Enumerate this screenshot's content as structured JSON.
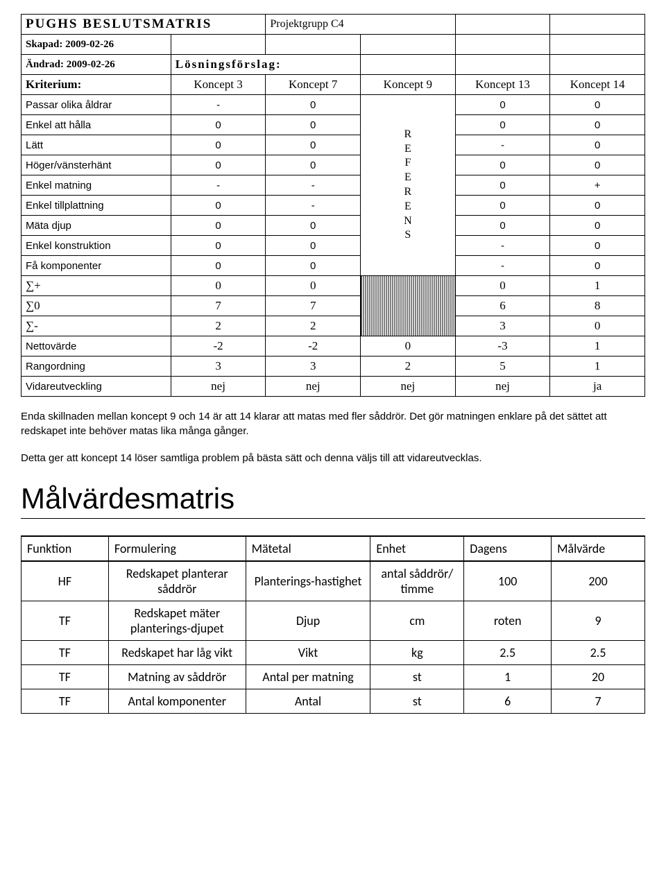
{
  "pugh": {
    "title": "PUGHS BESLUTSMATRIS",
    "project": "Projektgrupp C4",
    "created_label": "Skapad: 2009-02-26",
    "changed_label": "Ändrad: 2009-02-26",
    "losning_label": "Lösningsförslag:",
    "kriterium_label": "Kriterium:",
    "concepts": [
      "Koncept 3",
      "Koncept 7",
      "Koncept 9",
      "Koncept 13",
      "Koncept 14"
    ],
    "referens_text": "R\nE\nF\nE\nR\nE\nN\nS",
    "criteria": [
      {
        "label": "Passar olika åldrar",
        "c1": "-",
        "c2": "0",
        "c4": "0",
        "c5": "0"
      },
      {
        "label": "Enkel att hålla",
        "c1": "0",
        "c2": "0",
        "c4": "0",
        "c5": "0"
      },
      {
        "label": "Lätt",
        "c1": "0",
        "c2": "0",
        "c4": "-",
        "c5": "0"
      },
      {
        "label": "Höger/vänsterhänt",
        "c1": "0",
        "c2": "0",
        "c4": "0",
        "c5": "0"
      },
      {
        "label": "Enkel matning",
        "c1": "-",
        "c2": "-",
        "c4": "0",
        "c5": "+"
      },
      {
        "label": "Enkel tillplattning",
        "c1": "0",
        "c2": "-",
        "c4": "0",
        "c5": "0"
      },
      {
        "label": "Mäta djup",
        "c1": "0",
        "c2": "0",
        "c4": "0",
        "c5": "0"
      },
      {
        "label": "Enkel konstruktion",
        "c1": "0",
        "c2": "0",
        "c4": "-",
        "c5": "0"
      },
      {
        "label": "Få komponenter",
        "c1": "0",
        "c2": "0",
        "c4": "-",
        "c5": "0"
      }
    ],
    "sums": [
      {
        "label": "∑+",
        "c1": "0",
        "c2": "0",
        "c4": "0",
        "c5": "1"
      },
      {
        "label": "∑0",
        "c1": "7",
        "c2": "7",
        "c4": "6",
        "c5": "8"
      },
      {
        "label": "∑-",
        "c1": "2",
        "c2": "2",
        "c4": "3",
        "c5": "0"
      }
    ],
    "footer": [
      {
        "label": "Nettovärde",
        "c1": "-2",
        "c2": "-2",
        "c3": "0",
        "c4": "-3",
        "c5": "1"
      },
      {
        "label": "Rangordning",
        "c1": "3",
        "c2": "3",
        "c3": "2",
        "c4": "5",
        "c5": "1"
      },
      {
        "label": "Vidareutveckling",
        "c1": "nej",
        "c2": "nej",
        "c3": "nej",
        "c4": "nej",
        "c5": "ja"
      }
    ],
    "col_widths": [
      "24%",
      "15.2%",
      "15.2%",
      "15.2%",
      "15.2%",
      "15.2%"
    ]
  },
  "paragraph1": "Enda skillnaden mellan koncept 9 och 14 är att 14 klarar att matas med fler såddrör. Det gör matningen enklare på det sättet att redskapet inte behöver matas lika många gånger.",
  "paragraph2": "Detta ger att koncept 14 löser samtliga problem på bästa sätt och denna väljs till att vidareutvecklas.",
  "malv_heading": "Målvärdesmatris",
  "malv": {
    "columns": [
      "Funktion",
      "Formulering",
      "Mätetal",
      "Enhet",
      "Dagens",
      "Målvärde"
    ],
    "rows": [
      {
        "f": "HF",
        "form": "Redskapet planterar såddrör",
        "mat": "Planterings-hastighet",
        "enh": "antal såddrör/ timme",
        "dag": "100",
        "mal": "200"
      },
      {
        "f": "TF",
        "form": "Redskapet mäter planterings-djupet",
        "mat": "Djup",
        "enh": "cm",
        "dag": "roten",
        "mal": "9"
      },
      {
        "f": "TF",
        "form": "Redskapet har låg vikt",
        "mat": "Vikt",
        "enh": "kg",
        "dag": "2.5",
        "mal": "2.5"
      },
      {
        "f": "TF",
        "form": "Matning av såddrör",
        "mat": "Antal per matning",
        "enh": "st",
        "dag": "1",
        "mal": "20"
      },
      {
        "f": "TF",
        "form": "Antal komponenter",
        "mat": "Antal",
        "enh": "st",
        "dag": "6",
        "mal": "7"
      }
    ],
    "col_widths": [
      "14%",
      "22%",
      "20%",
      "15%",
      "14%",
      "15%"
    ]
  }
}
